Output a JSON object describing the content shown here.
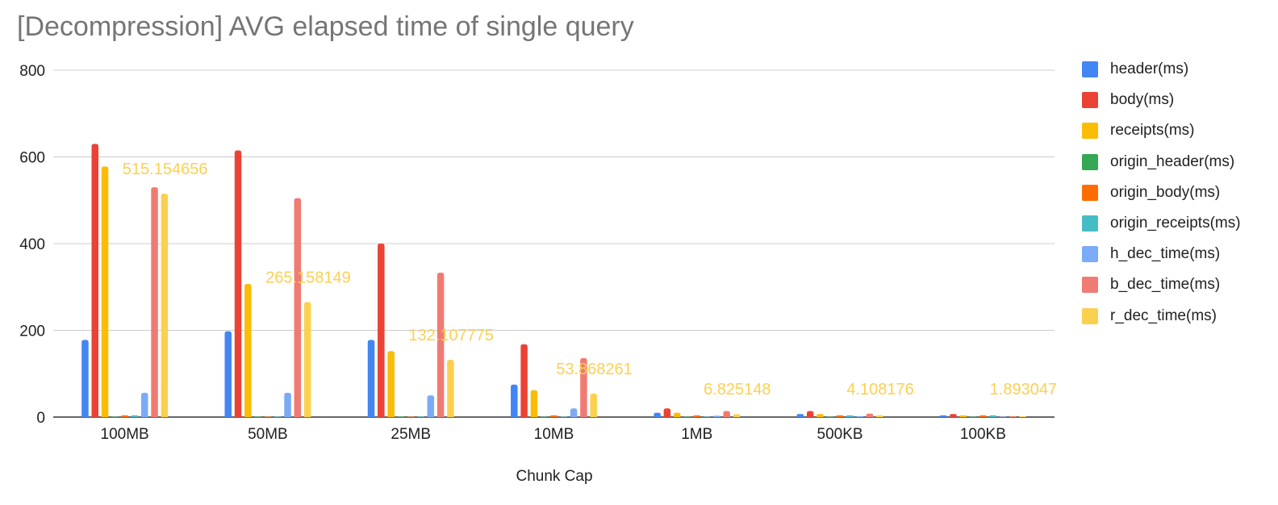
{
  "chart_data": {
    "type": "bar",
    "title": "[Decompression] AVG elapsed time of single query",
    "xlabel": "Chunk Cap",
    "ylabel": "",
    "ylim": [
      0,
      800
    ],
    "yticks": [
      0,
      200,
      400,
      600,
      800
    ],
    "grid": true,
    "legend_position": "right",
    "categories": [
      "100MB",
      "50MB",
      "25MB",
      "10MB",
      "1MB",
      "500KB",
      "100KB"
    ],
    "series": [
      {
        "name": "header(ms)",
        "color": "#4285f4",
        "values": [
          178,
          198,
          178,
          75,
          10,
          7,
          4
        ]
      },
      {
        "name": "body(ms)",
        "color": "#ea4335",
        "values": [
          630,
          615,
          400,
          168,
          20,
          14,
          7
        ]
      },
      {
        "name": "receipts(ms)",
        "color": "#fbbc04",
        "values": [
          578,
          307,
          152,
          62,
          10,
          7,
          4
        ]
      },
      {
        "name": "origin_header(ms)",
        "color": "#34a853",
        "values": [
          1,
          1,
          1,
          1,
          1,
          1,
          1
        ]
      },
      {
        "name": "origin_body(ms)",
        "color": "#ff6d01",
        "values": [
          4,
          1,
          1,
          4,
          4,
          4,
          4
        ]
      },
      {
        "name": "origin_receipts(ms)",
        "color": "#46bdc6",
        "values": [
          4,
          1,
          1,
          1,
          1,
          4,
          4
        ]
      },
      {
        "name": "h_dec_time(ms)",
        "color": "#7baaf7",
        "values": [
          56,
          56,
          50,
          20,
          3,
          2,
          1
        ]
      },
      {
        "name": "b_dec_time(ms)",
        "color": "#f07b72",
        "values": [
          530,
          505,
          333,
          136,
          14,
          8,
          2
        ]
      },
      {
        "name": "r_dec_time(ms)",
        "color": "#fcd04f",
        "values": [
          515.154656,
          265.158149,
          132.107775,
          53.868261,
          6.825148,
          4.108176,
          1.893047
        ]
      }
    ],
    "data_labels": [
      "515.154656",
      "265.158149",
      "132.107775",
      "53.868261",
      "6.825148",
      "4.108176",
      "1.893047"
    ]
  }
}
